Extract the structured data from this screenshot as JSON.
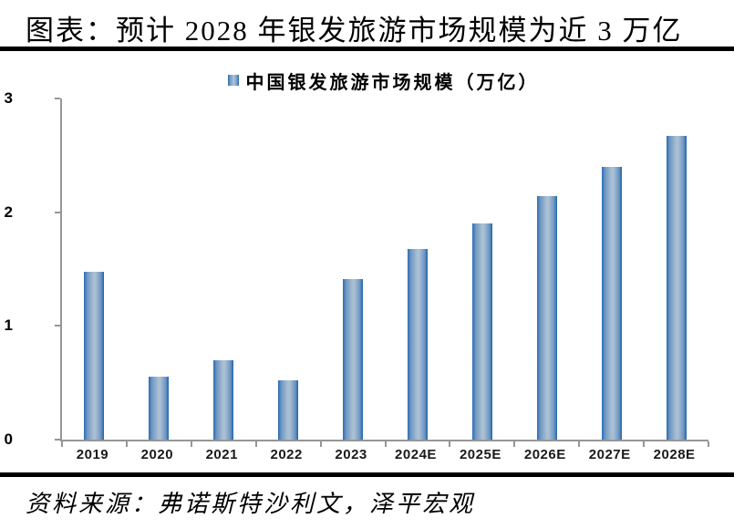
{
  "header": {
    "title": "图表：预计 2028 年银发旅游市场规模为近 3 万亿"
  },
  "chart_data": {
    "type": "bar",
    "legend": "中国银发旅游市场规模（万亿）",
    "legend_position": "top",
    "categories": [
      "2019",
      "2020",
      "2021",
      "2022",
      "2023",
      "2024E",
      "2025E",
      "2026E",
      "2027E",
      "2028E"
    ],
    "values": [
      1.48,
      0.55,
      0.7,
      0.52,
      1.41,
      1.68,
      1.9,
      2.14,
      2.4,
      2.67
    ],
    "ylim": [
      0,
      3
    ],
    "yticks": [
      "0",
      "1",
      "2",
      "3"
    ],
    "grid": false,
    "colors": {
      "bar_edge": "#2B6BB3",
      "bar_edge_dark": "#1F63AD",
      "bar_center": "#A9BFD3",
      "axis": "#969696",
      "text": "#000000",
      "divider": "#000000"
    }
  },
  "footer": {
    "source": "资料来源：弗诺斯特沙利文，泽平宏观"
  }
}
